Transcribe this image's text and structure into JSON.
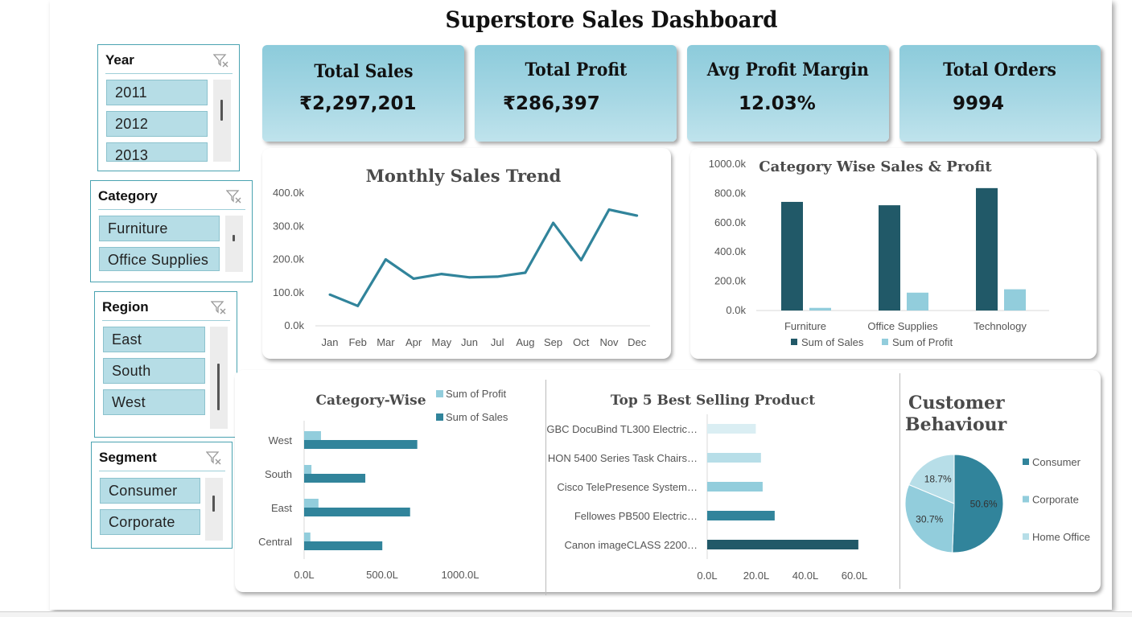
{
  "dashboard": {
    "title": "Superstore Sales Dashboard"
  },
  "slicers": {
    "year": {
      "title": "Year",
      "items": [
        "2011",
        "2012",
        "2013"
      ]
    },
    "category": {
      "title": "Category",
      "items": [
        "Furniture",
        "Office Supplies"
      ]
    },
    "region": {
      "title": "Region",
      "items": [
        "East",
        "South",
        "West"
      ]
    },
    "segment": {
      "title": "Segment",
      "items": [
        "Consumer",
        "Corporate"
      ]
    }
  },
  "kpis": [
    {
      "label": "Total Sales",
      "value": "₹2,297,201"
    },
    {
      "label": "Total Profit",
      "value": "₹286,397"
    },
    {
      "label": "Avg Profit Margin",
      "value": "12.03%"
    },
    {
      "label": "Total Orders",
      "value": "9994"
    }
  ],
  "colors": {
    "dark": "#215968",
    "sales": "#31849b",
    "line": "#31849b",
    "light": "#92cddc",
    "lighter": "#b7dee8",
    "lightest": "#daeef3"
  },
  "chart_data": [
    {
      "id": "monthly",
      "type": "line",
      "title": "Monthly Sales Trend",
      "categories": [
        "Jan",
        "Feb",
        "Mar",
        "Apr",
        "May",
        "Jun",
        "Jul",
        "Aug",
        "Sep",
        "Oct",
        "Nov",
        "Dec"
      ],
      "values": [
        94000,
        60000,
        200000,
        142000,
        156000,
        146000,
        148000,
        160000,
        310000,
        198000,
        350000,
        332000
      ],
      "ylim": [
        0,
        400000
      ],
      "yticks": [
        "0.0k",
        "100.0k",
        "200.0k",
        "300.0k",
        "400.0k"
      ],
      "grid": "none"
    },
    {
      "id": "category",
      "type": "bar",
      "title": "Category Wise Sales & Profit",
      "categories": [
        "Furniture",
        "Office Supplies",
        "Technology"
      ],
      "series": [
        {
          "name": "Sum of Sales",
          "values": [
            742000,
            719000,
            836000
          ]
        },
        {
          "name": "Sum of Profit",
          "values": [
            18000,
            122000,
            145000
          ]
        }
      ],
      "ylim": [
        0,
        1000000
      ],
      "yticks": [
        "0.0k",
        "200.0k",
        "400.0k",
        "600.0k",
        "800.0k",
        "1000.0k"
      ],
      "legend": "bottom"
    },
    {
      "id": "region",
      "type": "bar",
      "orientation": "horizontal",
      "title": "Category-Wise",
      "categories": [
        "West",
        "South",
        "East",
        "Central"
      ],
      "series": [
        {
          "name": "Sum of Profit",
          "values": [
            108,
            47,
            92,
            40
          ]
        },
        {
          "name": "Sum of Sales",
          "values": [
            725,
            392,
            679,
            501
          ]
        }
      ],
      "xlim": [
        0,
        1000
      ],
      "xticks": [
        "0.0L",
        "500.0L",
        "1000.0L"
      ],
      "legend": "top-right"
    },
    {
      "id": "top5",
      "type": "bar",
      "orientation": "horizontal",
      "title": "Top 5 Best Selling Product",
      "categories": [
        "GBC DocuBind TL300 Electric…",
        "HON 5400 Series Task Chairs…",
        "Cisco TelePresence System…",
        "Fellowes PB500 Electric…",
        "Canon imageCLASS 2200…"
      ],
      "values": [
        19.8,
        21.9,
        22.6,
        27.5,
        61.6
      ],
      "xlim": [
        0,
        60
      ],
      "xticks": [
        "0.0L",
        "20.0L",
        "40.0L",
        "60.0L"
      ]
    },
    {
      "id": "segment",
      "type": "pie",
      "title": "Customer Behaviour",
      "labels": [
        "Consumer",
        "Corporate",
        "Home Office"
      ],
      "values": [
        50.6,
        30.7,
        18.7
      ],
      "data_labels": [
        "50.6%",
        "30.7%",
        "18.7%"
      ],
      "legend": "right"
    }
  ]
}
